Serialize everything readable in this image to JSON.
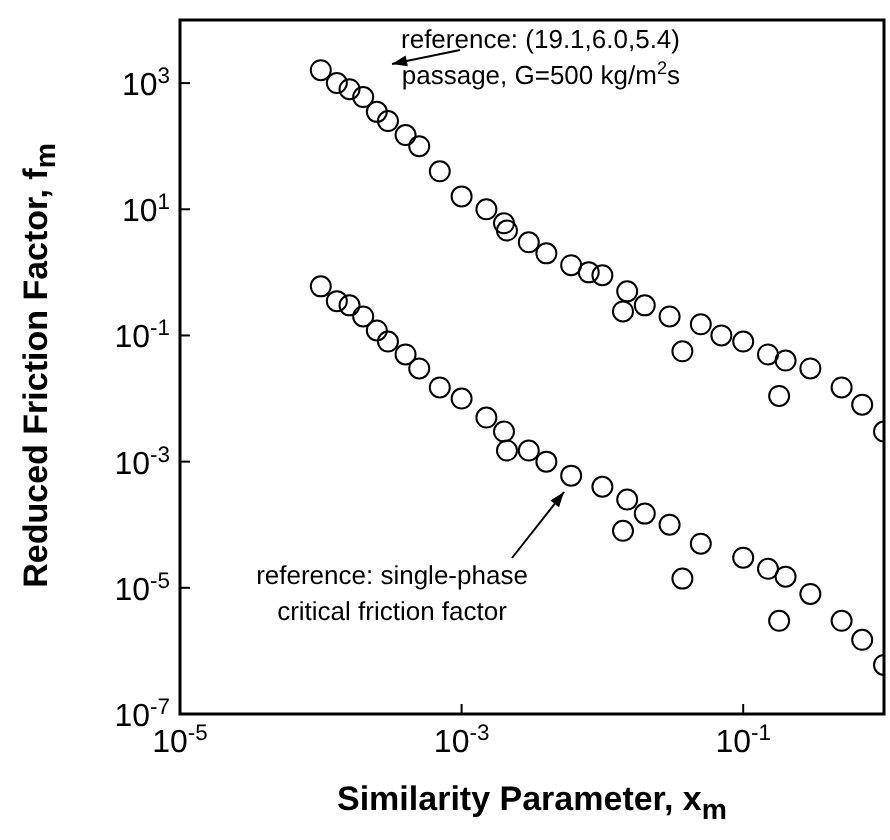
{
  "chart_data": {
    "type": "scatter",
    "xlabel": "Similarity Parameter, x$_{m}$",
    "ylabel": "Reduced Friction Factor, f$_{m}$",
    "log": "xy",
    "marker": "circle",
    "xlim": [
      1e-05,
      1
    ],
    "ylim": [
      1e-07,
      10000.0
    ],
    "xticks": [
      {
        "value": 1e-05,
        "label": "10$^{-5}$"
      },
      {
        "value": 0.001,
        "label": "10$^{-3}$"
      },
      {
        "value": 0.1,
        "label": "10$^{-1}$"
      }
    ],
    "yticks": [
      {
        "value": 1e-07,
        "label": "10$^{-7}$"
      },
      {
        "value": 1e-05,
        "label": "10$^{-5}$"
      },
      {
        "value": 0.001,
        "label": "10$^{-3}$"
      },
      {
        "value": 0.1,
        "label": "10$^{-1}$"
      },
      {
        "value": 10,
        "label": "10$^{1}$"
      },
      {
        "value": 1000,
        "label": "10$^{3}$"
      }
    ],
    "series": [
      {
        "color": "#000000",
        "x": [
          0.0001,
          0.00013,
          0.00016,
          0.0002,
          0.00025,
          0.0003,
          0.0004,
          0.0005,
          0.0007,
          0.001,
          0.0015,
          0.0021,
          0.002,
          0.003,
          0.004,
          0.006,
          0.008,
          0.01,
          0.014,
          0.015,
          0.02,
          0.03,
          0.037,
          0.05,
          0.07,
          0.1,
          0.15,
          0.18,
          0.2,
          0.3,
          0.5,
          0.7,
          1
        ],
        "values": [
          1600,
          1000,
          800,
          600,
          350,
          250,
          150,
          100,
          40,
          16,
          10,
          4.6,
          6,
          3,
          2,
          1.3,
          1,
          0.9,
          0.24,
          0.5,
          0.3,
          0.2,
          0.056,
          0.15,
          0.1,
          0.08,
          0.05,
          0.011,
          0.04,
          0.03,
          0.015,
          0.008,
          0.003
        ]
      },
      {
        "color": "#000000",
        "x": [
          0.0001,
          0.00013,
          0.00016,
          0.0002,
          0.00025,
          0.0003,
          0.0004,
          0.0005,
          0.0007,
          0.001,
          0.0015,
          0.0021,
          0.002,
          0.003,
          0.004,
          0.006,
          0.01,
          0.014,
          0.015,
          0.02,
          0.03,
          0.037,
          0.05,
          0.1,
          0.15,
          0.18,
          0.2,
          0.3,
          0.5,
          0.7,
          1
        ],
        "values": [
          0.6,
          0.35,
          0.3,
          0.2,
          0.12,
          0.08,
          0.05,
          0.03,
          0.015,
          0.01,
          0.005,
          0.0015,
          0.003,
          0.0015,
          0.001,
          0.0006,
          0.0004,
          8e-05,
          0.00025,
          0.00015,
          0.0001,
          1.4e-05,
          5e-05,
          3e-05,
          2e-05,
          3e-06,
          1.5e-05,
          8e-06,
          3e-06,
          1.5e-06,
          6e-07
        ]
      }
    ],
    "annotations": [
      "reference: (19.1,6.0,5.4)\npassage, G=500 kg/m$^{2}$s",
      "reference: single-phase\ncritical friction factor"
    ]
  }
}
